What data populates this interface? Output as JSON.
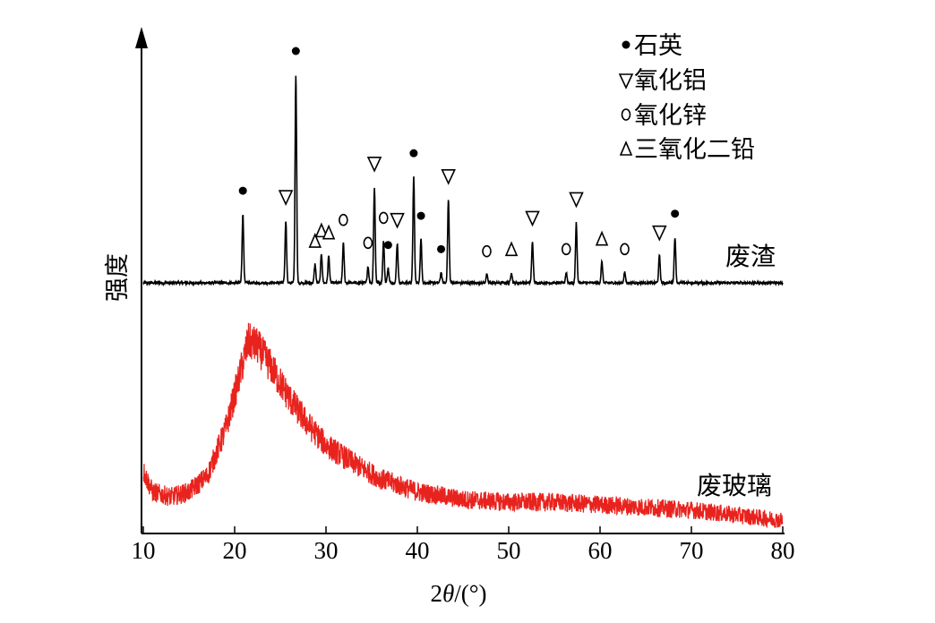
{
  "chart_data": {
    "type": "line",
    "title": "",
    "xlabel_parts": [
      "2",
      "θ",
      "/(°)"
    ],
    "ylabel": "强度",
    "xlim": [
      10,
      80
    ],
    "x_ticks": [
      10,
      20,
      30,
      40,
      50,
      60,
      70,
      80
    ],
    "grid": false,
    "legend_position": "top-right",
    "legend": [
      {
        "symbol": "dot",
        "label": "石英"
      },
      {
        "symbol": "triangle-down",
        "label": "氧化铝"
      },
      {
        "symbol": "circle",
        "label": "氧化锌"
      },
      {
        "symbol": "triangle-up",
        "label": "三氧化二铅"
      }
    ],
    "series": [
      {
        "label": "废渣",
        "color": "#000000",
        "baseline": 0.0,
        "peaks": [
          {
            "x": 20.9,
            "height": 0.33,
            "phase": "dot"
          },
          {
            "x": 25.6,
            "height": 0.3,
            "phase": "triangle-down"
          },
          {
            "x": 26.7,
            "height": 1.0,
            "phase": "dot"
          },
          {
            "x": 28.8,
            "height": 0.09,
            "phase": "triangle-up"
          },
          {
            "x": 29.5,
            "height": 0.14,
            "phase": "triangle-up"
          },
          {
            "x": 30.3,
            "height": 0.13,
            "phase": "triangle-up"
          },
          {
            "x": 31.9,
            "height": 0.19,
            "phase": "circle"
          },
          {
            "x": 34.6,
            "height": 0.08,
            "phase": "circle"
          },
          {
            "x": 35.3,
            "height": 0.46,
            "phase": "triangle-down"
          },
          {
            "x": 36.3,
            "height": 0.2,
            "phase": "circle"
          },
          {
            "x": 36.8,
            "height": 0.07,
            "phase": "dot"
          },
          {
            "x": 37.8,
            "height": 0.19,
            "phase": "triangle-down"
          },
          {
            "x": 39.6,
            "height": 0.51,
            "phase": "dot"
          },
          {
            "x": 40.4,
            "height": 0.21,
            "phase": "dot"
          },
          {
            "x": 42.6,
            "height": 0.05,
            "phase": "dot"
          },
          {
            "x": 43.4,
            "height": 0.4,
            "phase": "triangle-down"
          },
          {
            "x": 47.6,
            "height": 0.04,
            "phase": "circle"
          },
          {
            "x": 50.3,
            "height": 0.05,
            "phase": "triangle-up"
          },
          {
            "x": 52.6,
            "height": 0.2,
            "phase": "triangle-down"
          },
          {
            "x": 56.3,
            "height": 0.05,
            "phase": "circle"
          },
          {
            "x": 57.4,
            "height": 0.29,
            "phase": "triangle-down"
          },
          {
            "x": 60.2,
            "height": 0.1,
            "phase": "triangle-up"
          },
          {
            "x": 62.7,
            "height": 0.05,
            "phase": "circle"
          },
          {
            "x": 66.5,
            "height": 0.13,
            "phase": "triangle-down"
          },
          {
            "x": 68.2,
            "height": 0.22,
            "phase": "dot"
          }
        ]
      },
      {
        "label": "废玻璃",
        "color": "#e8231e",
        "profile": [
          {
            "x": 10,
            "y": 0.22
          },
          {
            "x": 11,
            "y": 0.14
          },
          {
            "x": 13,
            "y": 0.12
          },
          {
            "x": 15,
            "y": 0.14
          },
          {
            "x": 17,
            "y": 0.2
          },
          {
            "x": 19,
            "y": 0.38
          },
          {
            "x": 20.5,
            "y": 0.58
          },
          {
            "x": 21.5,
            "y": 0.72
          },
          {
            "x": 22.5,
            "y": 0.7
          },
          {
            "x": 24,
            "y": 0.62
          },
          {
            "x": 26,
            "y": 0.5
          },
          {
            "x": 28,
            "y": 0.4
          },
          {
            "x": 30,
            "y": 0.32
          },
          {
            "x": 33,
            "y": 0.25
          },
          {
            "x": 36,
            "y": 0.19
          },
          {
            "x": 40,
            "y": 0.14
          },
          {
            "x": 45,
            "y": 0.11
          },
          {
            "x": 50,
            "y": 0.1
          },
          {
            "x": 55,
            "y": 0.1
          },
          {
            "x": 60,
            "y": 0.09
          },
          {
            "x": 65,
            "y": 0.08
          },
          {
            "x": 70,
            "y": 0.07
          },
          {
            "x": 75,
            "y": 0.05
          },
          {
            "x": 80,
            "y": 0.03
          }
        ]
      }
    ]
  }
}
